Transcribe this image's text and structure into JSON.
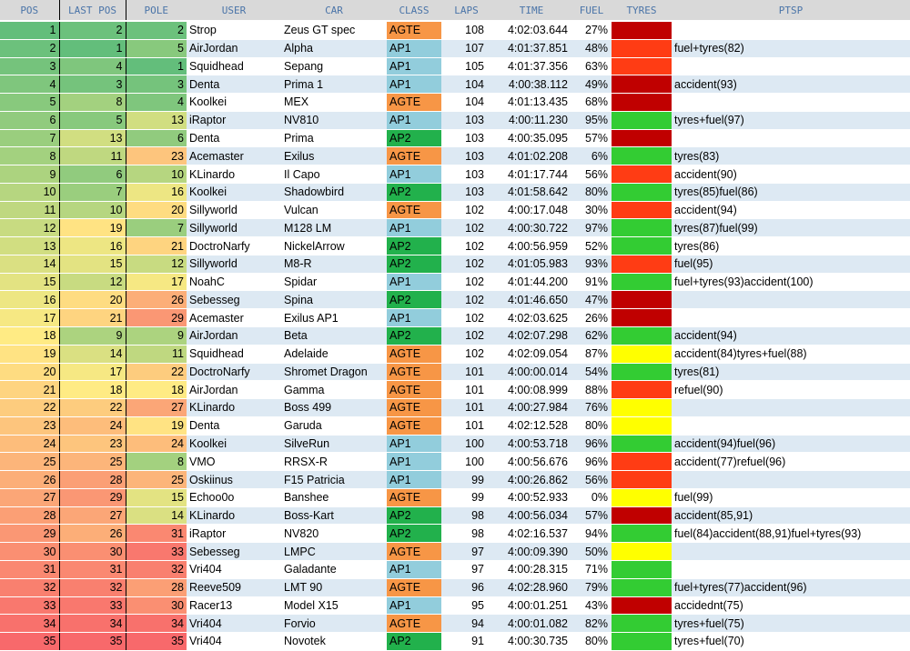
{
  "headers": [
    "POS",
    "LAST POS",
    "POLE",
    "USER",
    "CAR",
    "CLASS",
    "LAPS",
    "TIME",
    "FUEL",
    "TYRES",
    "PTSP"
  ],
  "colors": {
    "class": {
      "AGTE": "#f79646",
      "AP1": "#92cddc",
      "AP2": "#22b14c"
    },
    "tyres": {
      "red": "#c00000",
      "orange": "#ff3c14",
      "yellow": "#ffff00",
      "green": "#33cc33"
    }
  },
  "rows": [
    {
      "pos": "1",
      "last": "2",
      "pole": "2",
      "user": "Strop",
      "car": "Zeus GT spec",
      "class": "AGTE",
      "laps": "108",
      "time": "4:02:03.644",
      "fuel": "27%",
      "tyres": "red",
      "ptsp": ""
    },
    {
      "pos": "2",
      "last": "1",
      "pole": "5",
      "user": "AirJordan",
      "car": "Alpha",
      "class": "AP1",
      "laps": "107",
      "time": "4:01:37.851",
      "fuel": "48%",
      "tyres": "orange",
      "ptsp": "fuel+tyres(82)"
    },
    {
      "pos": "3",
      "last": "4",
      "pole": "1",
      "user": "Squidhead",
      "car": "Sepang",
      "class": "AP1",
      "laps": "105",
      "time": "4:01:37.356",
      "fuel": "63%",
      "tyres": "orange",
      "ptsp": ""
    },
    {
      "pos": "4",
      "last": "3",
      "pole": "3",
      "user": "Denta",
      "car": "Prima 1",
      "class": "AP1",
      "laps": "104",
      "time": "4:00:38.112",
      "fuel": "49%",
      "tyres": "red",
      "ptsp": "accident(93)"
    },
    {
      "pos": "5",
      "last": "8",
      "pole": "4",
      "user": "Koolkei",
      "car": "MEX",
      "class": "AGTE",
      "laps": "104",
      "time": "4:01:13.435",
      "fuel": "68%",
      "tyres": "red",
      "ptsp": ""
    },
    {
      "pos": "6",
      "last": "5",
      "pole": "13",
      "user": "iRaptor",
      "car": "NV810",
      "class": "AP1",
      "laps": "103",
      "time": "4:00:11.230",
      "fuel": "95%",
      "tyres": "green",
      "ptsp": "tyres+fuel(97)"
    },
    {
      "pos": "7",
      "last": "13",
      "pole": "6",
      "user": "Denta",
      "car": "Prima",
      "class": "AP2",
      "laps": "103",
      "time": "4:00:35.095",
      "fuel": "57%",
      "tyres": "red",
      "ptsp": ""
    },
    {
      "pos": "8",
      "last": "11",
      "pole": "23",
      "user": "Acemaster",
      "car": "Exilus",
      "class": "AGTE",
      "laps": "103",
      "time": "4:01:02.208",
      "fuel": "6%",
      "tyres": "green",
      "ptsp": "tyres(83)"
    },
    {
      "pos": "9",
      "last": "6",
      "pole": "10",
      "user": "KLinardo",
      "car": "Il Capo",
      "class": "AP1",
      "laps": "103",
      "time": "4:01:17.744",
      "fuel": "56%",
      "tyres": "orange",
      "ptsp": "accident(90)"
    },
    {
      "pos": "10",
      "last": "7",
      "pole": "16",
      "user": "Koolkei",
      "car": "Shadowbird",
      "class": "AP2",
      "laps": "103",
      "time": "4:01:58.642",
      "fuel": "80%",
      "tyres": "green",
      "ptsp": "tyres(85)fuel(86)"
    },
    {
      "pos": "11",
      "last": "10",
      "pole": "20",
      "user": "Sillyworld",
      "car": "Vulcan",
      "class": "AGTE",
      "laps": "102",
      "time": "4:00:17.048",
      "fuel": "30%",
      "tyres": "orange",
      "ptsp": "accident(94)"
    },
    {
      "pos": "12",
      "last": "19",
      "pole": "7",
      "user": "Sillyworld",
      "car": "M128 LM",
      "class": "AP1",
      "laps": "102",
      "time": "4:00:30.722",
      "fuel": "97%",
      "tyres": "green",
      "ptsp": "tyres(87)fuel(99)"
    },
    {
      "pos": "13",
      "last": "16",
      "pole": "21",
      "user": "DoctroNarfy",
      "car": "NickelArrow",
      "class": "AP2",
      "laps": "102",
      "time": "4:00:56.959",
      "fuel": "52%",
      "tyres": "green",
      "ptsp": "tyres(86)"
    },
    {
      "pos": "14",
      "last": "15",
      "pole": "12",
      "user": "Sillyworld",
      "car": "M8-R",
      "class": "AP2",
      "laps": "102",
      "time": "4:01:05.983",
      "fuel": "93%",
      "tyres": "orange",
      "ptsp": "fuel(95)"
    },
    {
      "pos": "15",
      "last": "12",
      "pole": "17",
      "user": "NoahC",
      "car": "Spidar",
      "class": "AP1",
      "laps": "102",
      "time": "4:01:44.200",
      "fuel": "91%",
      "tyres": "green",
      "ptsp": "fuel+tyres(93)accident(100)"
    },
    {
      "pos": "16",
      "last": "20",
      "pole": "26",
      "user": "Sebesseg",
      "car": "Spina",
      "class": "AP2",
      "laps": "102",
      "time": "4:01:46.650",
      "fuel": "47%",
      "tyres": "red",
      "ptsp": ""
    },
    {
      "pos": "17",
      "last": "21",
      "pole": "29",
      "user": "Acemaster",
      "car": "Exilus AP1",
      "class": "AP1",
      "laps": "102",
      "time": "4:02:03.625",
      "fuel": "26%",
      "tyres": "red",
      "ptsp": ""
    },
    {
      "pos": "18",
      "last": "9",
      "pole": "9",
      "user": "AirJordan",
      "car": "Beta",
      "class": "AP2",
      "laps": "102",
      "time": "4:02:07.298",
      "fuel": "62%",
      "tyres": "green",
      "ptsp": "accident(94)"
    },
    {
      "pos": "19",
      "last": "14",
      "pole": "11",
      "user": "Squidhead",
      "car": "Adelaide",
      "class": "AGTE",
      "laps": "102",
      "time": "4:02:09.054",
      "fuel": "87%",
      "tyres": "yellow",
      "ptsp": "accident(84)tyres+fuel(88)"
    },
    {
      "pos": "20",
      "last": "17",
      "pole": "22",
      "user": "DoctroNarfy",
      "car": "Shromet Dragon",
      "class": "AGTE",
      "laps": "101",
      "time": "4:00:00.014",
      "fuel": "54%",
      "tyres": "green",
      "ptsp": "tyres(81)"
    },
    {
      "pos": "21",
      "last": "18",
      "pole": "18",
      "user": "AirJordan",
      "car": "Gamma",
      "class": "AGTE",
      "laps": "101",
      "time": "4:00:08.999",
      "fuel": "88%",
      "tyres": "orange",
      "ptsp": "refuel(90)"
    },
    {
      "pos": "22",
      "last": "22",
      "pole": "27",
      "user": "KLinardo",
      "car": "Boss 499",
      "class": "AGTE",
      "laps": "101",
      "time": "4:00:27.984",
      "fuel": "76%",
      "tyres": "yellow",
      "ptsp": ""
    },
    {
      "pos": "23",
      "last": "24",
      "pole": "19",
      "user": "Denta",
      "car": "Garuda",
      "class": "AGTE",
      "laps": "101",
      "time": "4:02:12.528",
      "fuel": "80%",
      "tyres": "yellow",
      "ptsp": ""
    },
    {
      "pos": "24",
      "last": "23",
      "pole": "24",
      "user": "Koolkei",
      "car": "SilveRun",
      "class": "AP1",
      "laps": "100",
      "time": "4:00:53.718",
      "fuel": "96%",
      "tyres": "green",
      "ptsp": "accident(94)fuel(96)"
    },
    {
      "pos": "25",
      "last": "25",
      "pole": "8",
      "user": "VMO",
      "car": "RRSX-R",
      "class": "AP1",
      "laps": "100",
      "time": "4:00:56.676",
      "fuel": "96%",
      "tyres": "orange",
      "ptsp": "accident(77)refuel(96)"
    },
    {
      "pos": "26",
      "last": "28",
      "pole": "25",
      "user": "Oskiinus",
      "car": "F15 Patricia",
      "class": "AP1",
      "laps": "99",
      "time": "4:00:26.862",
      "fuel": "56%",
      "tyres": "orange",
      "ptsp": ""
    },
    {
      "pos": "27",
      "last": "29",
      "pole": "15",
      "user": "Echoo0o",
      "car": "Banshee",
      "class": "AGTE",
      "laps": "99",
      "time": "4:00:52.933",
      "fuel": "0%",
      "tyres": "yellow",
      "ptsp": "fuel(99)"
    },
    {
      "pos": "28",
      "last": "27",
      "pole": "14",
      "user": "KLinardo",
      "car": "Boss-Kart",
      "class": "AP2",
      "laps": "98",
      "time": "4:00:56.034",
      "fuel": "57%",
      "tyres": "red",
      "ptsp": "accident(85,91)"
    },
    {
      "pos": "29",
      "last": "26",
      "pole": "31",
      "user": "iRaptor",
      "car": "NV820",
      "class": "AP2",
      "laps": "98",
      "time": "4:02:16.537",
      "fuel": "94%",
      "tyres": "green",
      "ptsp": "fuel(84)accident(88,91)fuel+tyres(93)"
    },
    {
      "pos": "30",
      "last": "30",
      "pole": "33",
      "user": "Sebesseg",
      "car": "LMPC",
      "class": "AGTE",
      "laps": "97",
      "time": "4:00:09.390",
      "fuel": "50%",
      "tyres": "yellow",
      "ptsp": ""
    },
    {
      "pos": "31",
      "last": "31",
      "pole": "32",
      "user": "Vri404",
      "car": "Galadante",
      "class": "AP1",
      "laps": "97",
      "time": "4:00:28.315",
      "fuel": "71%",
      "tyres": "green",
      "ptsp": ""
    },
    {
      "pos": "32",
      "last": "32",
      "pole": "28",
      "user": "Reeve509",
      "car": "LMT 90",
      "class": "AGTE",
      "laps": "96",
      "time": "4:02:28.960",
      "fuel": "79%",
      "tyres": "green",
      "ptsp": "fuel+tyres(77)accident(96)"
    },
    {
      "pos": "33",
      "last": "33",
      "pole": "30",
      "user": "Racer13",
      "car": "Model X15",
      "class": "AP1",
      "laps": "95",
      "time": "4:00:01.251",
      "fuel": "43%",
      "tyres": "red",
      "ptsp": "accidednt(75)"
    },
    {
      "pos": "34",
      "last": "34",
      "pole": "34",
      "user": "Vri404",
      "car": "Forvio",
      "class": "AGTE",
      "laps": "94",
      "time": "4:00:01.082",
      "fuel": "82%",
      "tyres": "green",
      "ptsp": "tyres+fuel(75)"
    },
    {
      "pos": "35",
      "last": "35",
      "pole": "35",
      "user": "Vri404",
      "car": "Novotek",
      "class": "AP2",
      "laps": "91",
      "time": "4:00:30.735",
      "fuel": "80%",
      "tyres": "green",
      "ptsp": "tyres+fuel(70)"
    }
  ]
}
